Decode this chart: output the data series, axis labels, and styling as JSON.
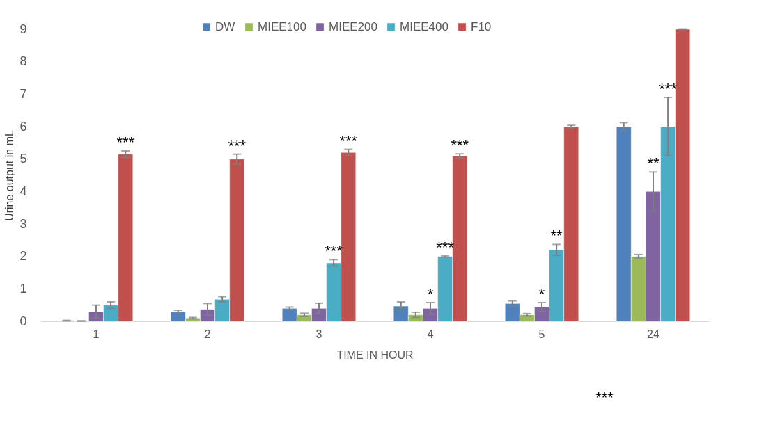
{
  "chart_data": {
    "type": "bar",
    "xlabel": "TIME IN HOUR",
    "ylabel": "Urine output in mL",
    "categories": [
      "1",
      "2",
      "3",
      "4",
      "5",
      "24"
    ],
    "series": [
      {
        "name": "DW",
        "color": "#4f81bd",
        "values": [
          0.02,
          0.3,
          0.4,
          0.47,
          0.55,
          6.0
        ],
        "errors": [
          0.01,
          0.04,
          0.04,
          0.13,
          0.08,
          0.12
        ]
      },
      {
        "name": "MIEE100",
        "color": "#9bbb59",
        "values": [
          0.01,
          0.1,
          0.2,
          0.2,
          0.2,
          2.0
        ],
        "errors": [
          0.005,
          0.02,
          0.05,
          0.08,
          0.04,
          0.06
        ]
      },
      {
        "name": "MIEE200",
        "color": "#8064a2",
        "values": [
          0.3,
          0.37,
          0.4,
          0.4,
          0.45,
          4.0
        ],
        "errors": [
          0.2,
          0.18,
          0.16,
          0.18,
          0.13,
          0.6
        ]
      },
      {
        "name": "MIEE400",
        "color": "#4bacc6",
        "values": [
          0.5,
          0.68,
          1.8,
          2.0,
          2.2,
          6.0
        ],
        "errors": [
          0.1,
          0.08,
          0.1,
          0.02,
          0.17,
          0.9
        ]
      },
      {
        "name": "F10",
        "color": "#c0504d",
        "values": [
          5.15,
          5.0,
          5.2,
          5.1,
          6.0,
          9.0
        ],
        "errors": [
          0.1,
          0.15,
          0.1,
          0.06,
          0.04,
          0.01
        ]
      }
    ],
    "ylim": [
      0,
      9
    ],
    "yticks": [
      0,
      1,
      2,
      3,
      4,
      5,
      6,
      7,
      8,
      9
    ],
    "grid": false,
    "legend": "top",
    "annotations": [
      "***",
      "***",
      "***",
      "***",
      "*",
      "***",
      "***",
      "*",
      "**",
      "**",
      "***",
      "***"
    ]
  }
}
